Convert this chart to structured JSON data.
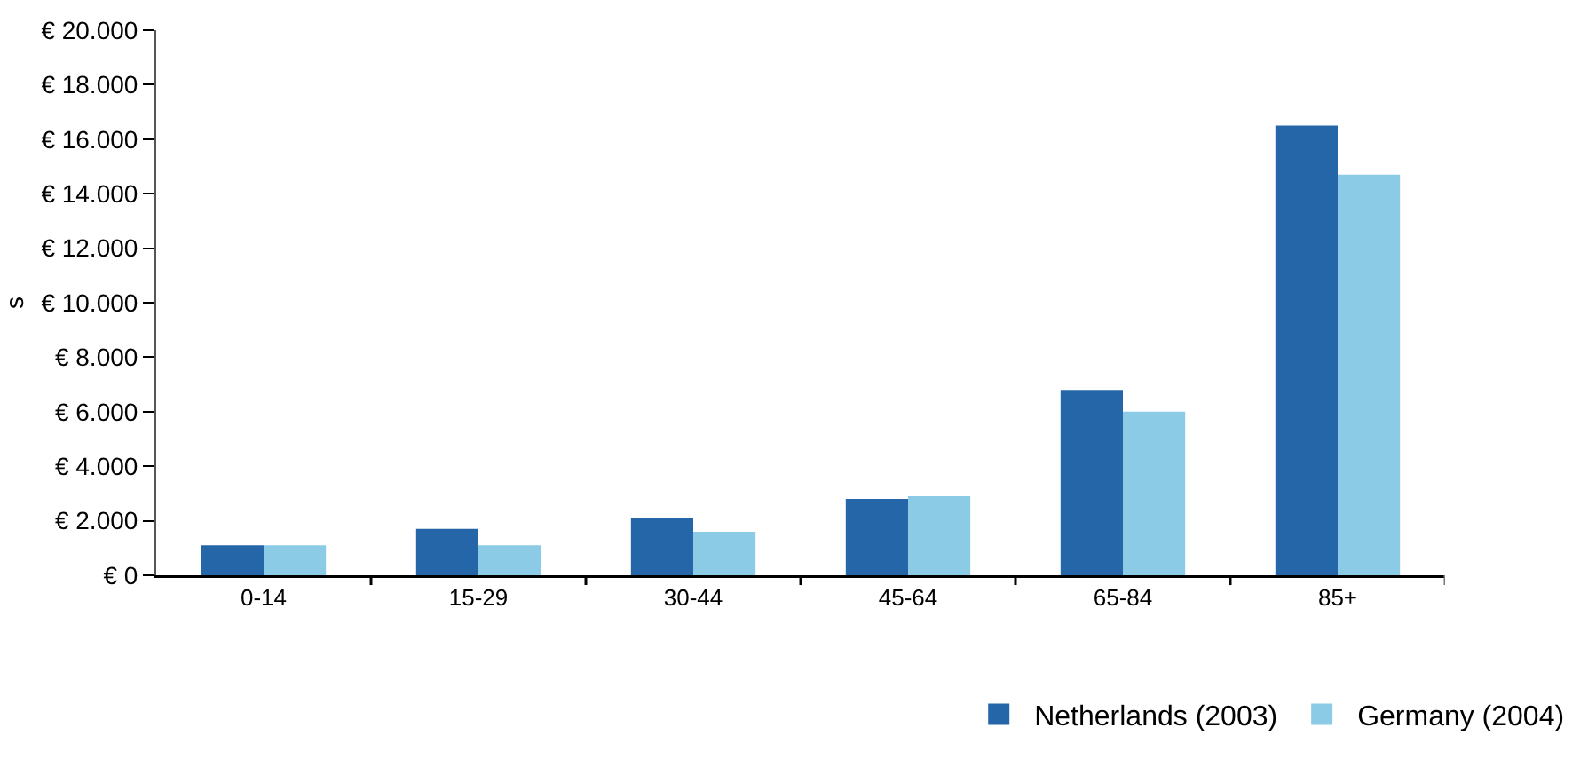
{
  "chart_data": {
    "type": "bar",
    "ylabel": "s",
    "categories": [
      "0-14",
      "15-29",
      "30-44",
      "45-64",
      "65-84",
      "85+"
    ],
    "series": [
      {
        "name": "Netherlands (2003)",
        "color": "#2566a8",
        "values": [
          1100,
          1700,
          2100,
          2800,
          6800,
          16500
        ]
      },
      {
        "name": "Germany (2004)",
        "color": "#8ccbe6",
        "values": [
          1100,
          1100,
          1600,
          2900,
          6000,
          14700
        ]
      }
    ],
    "ylim": [
      0,
      20000
    ],
    "yticks": [
      {
        "value": 0,
        "label": "€ 0"
      },
      {
        "value": 2000,
        "label": "€ 2.000"
      },
      {
        "value": 4000,
        "label": "€ 4.000"
      },
      {
        "value": 6000,
        "label": "€ 6.000"
      },
      {
        "value": 8000,
        "label": "€ 8.000"
      },
      {
        "value": 10000,
        "label": "€ 10.000"
      },
      {
        "value": 12000,
        "label": "€ 12.000"
      },
      {
        "value": 14000,
        "label": "€ 14.000"
      },
      {
        "value": 16000,
        "label": "€ 16.000"
      },
      {
        "value": 18000,
        "label": "€ 18.000"
      },
      {
        "value": 20000,
        "label": "€ 20.000"
      }
    ],
    "grid": false,
    "legend": "bottom right"
  }
}
